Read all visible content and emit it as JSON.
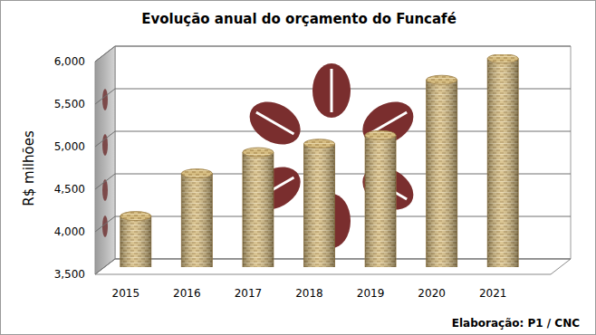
{
  "chart_data": {
    "type": "bar",
    "title": "Evolução anual do orçamento do Funcafé",
    "y_label": "R$ milhões",
    "source": "Elaboração: P1 / CNC",
    "categories": [
      "2015",
      "2016",
      "2017",
      "2018",
      "2019",
      "2020",
      "2021"
    ],
    "values": [
      4100,
      4600,
      4850,
      4950,
      5050,
      5700,
      5950
    ],
    "color": "#d6bd82",
    "ylim": [
      3500,
      6000
    ],
    "yticks": [
      {
        "value": 3500,
        "label": "3,500"
      },
      {
        "value": 4000,
        "label": "4,000"
      },
      {
        "value": 4500,
        "label": "4,500"
      },
      {
        "value": 5000,
        "label": "5,000"
      },
      {
        "value": 5500,
        "label": "5,500"
      },
      {
        "value": 6000,
        "label": "6,000"
      }
    ],
    "grid": true
  }
}
